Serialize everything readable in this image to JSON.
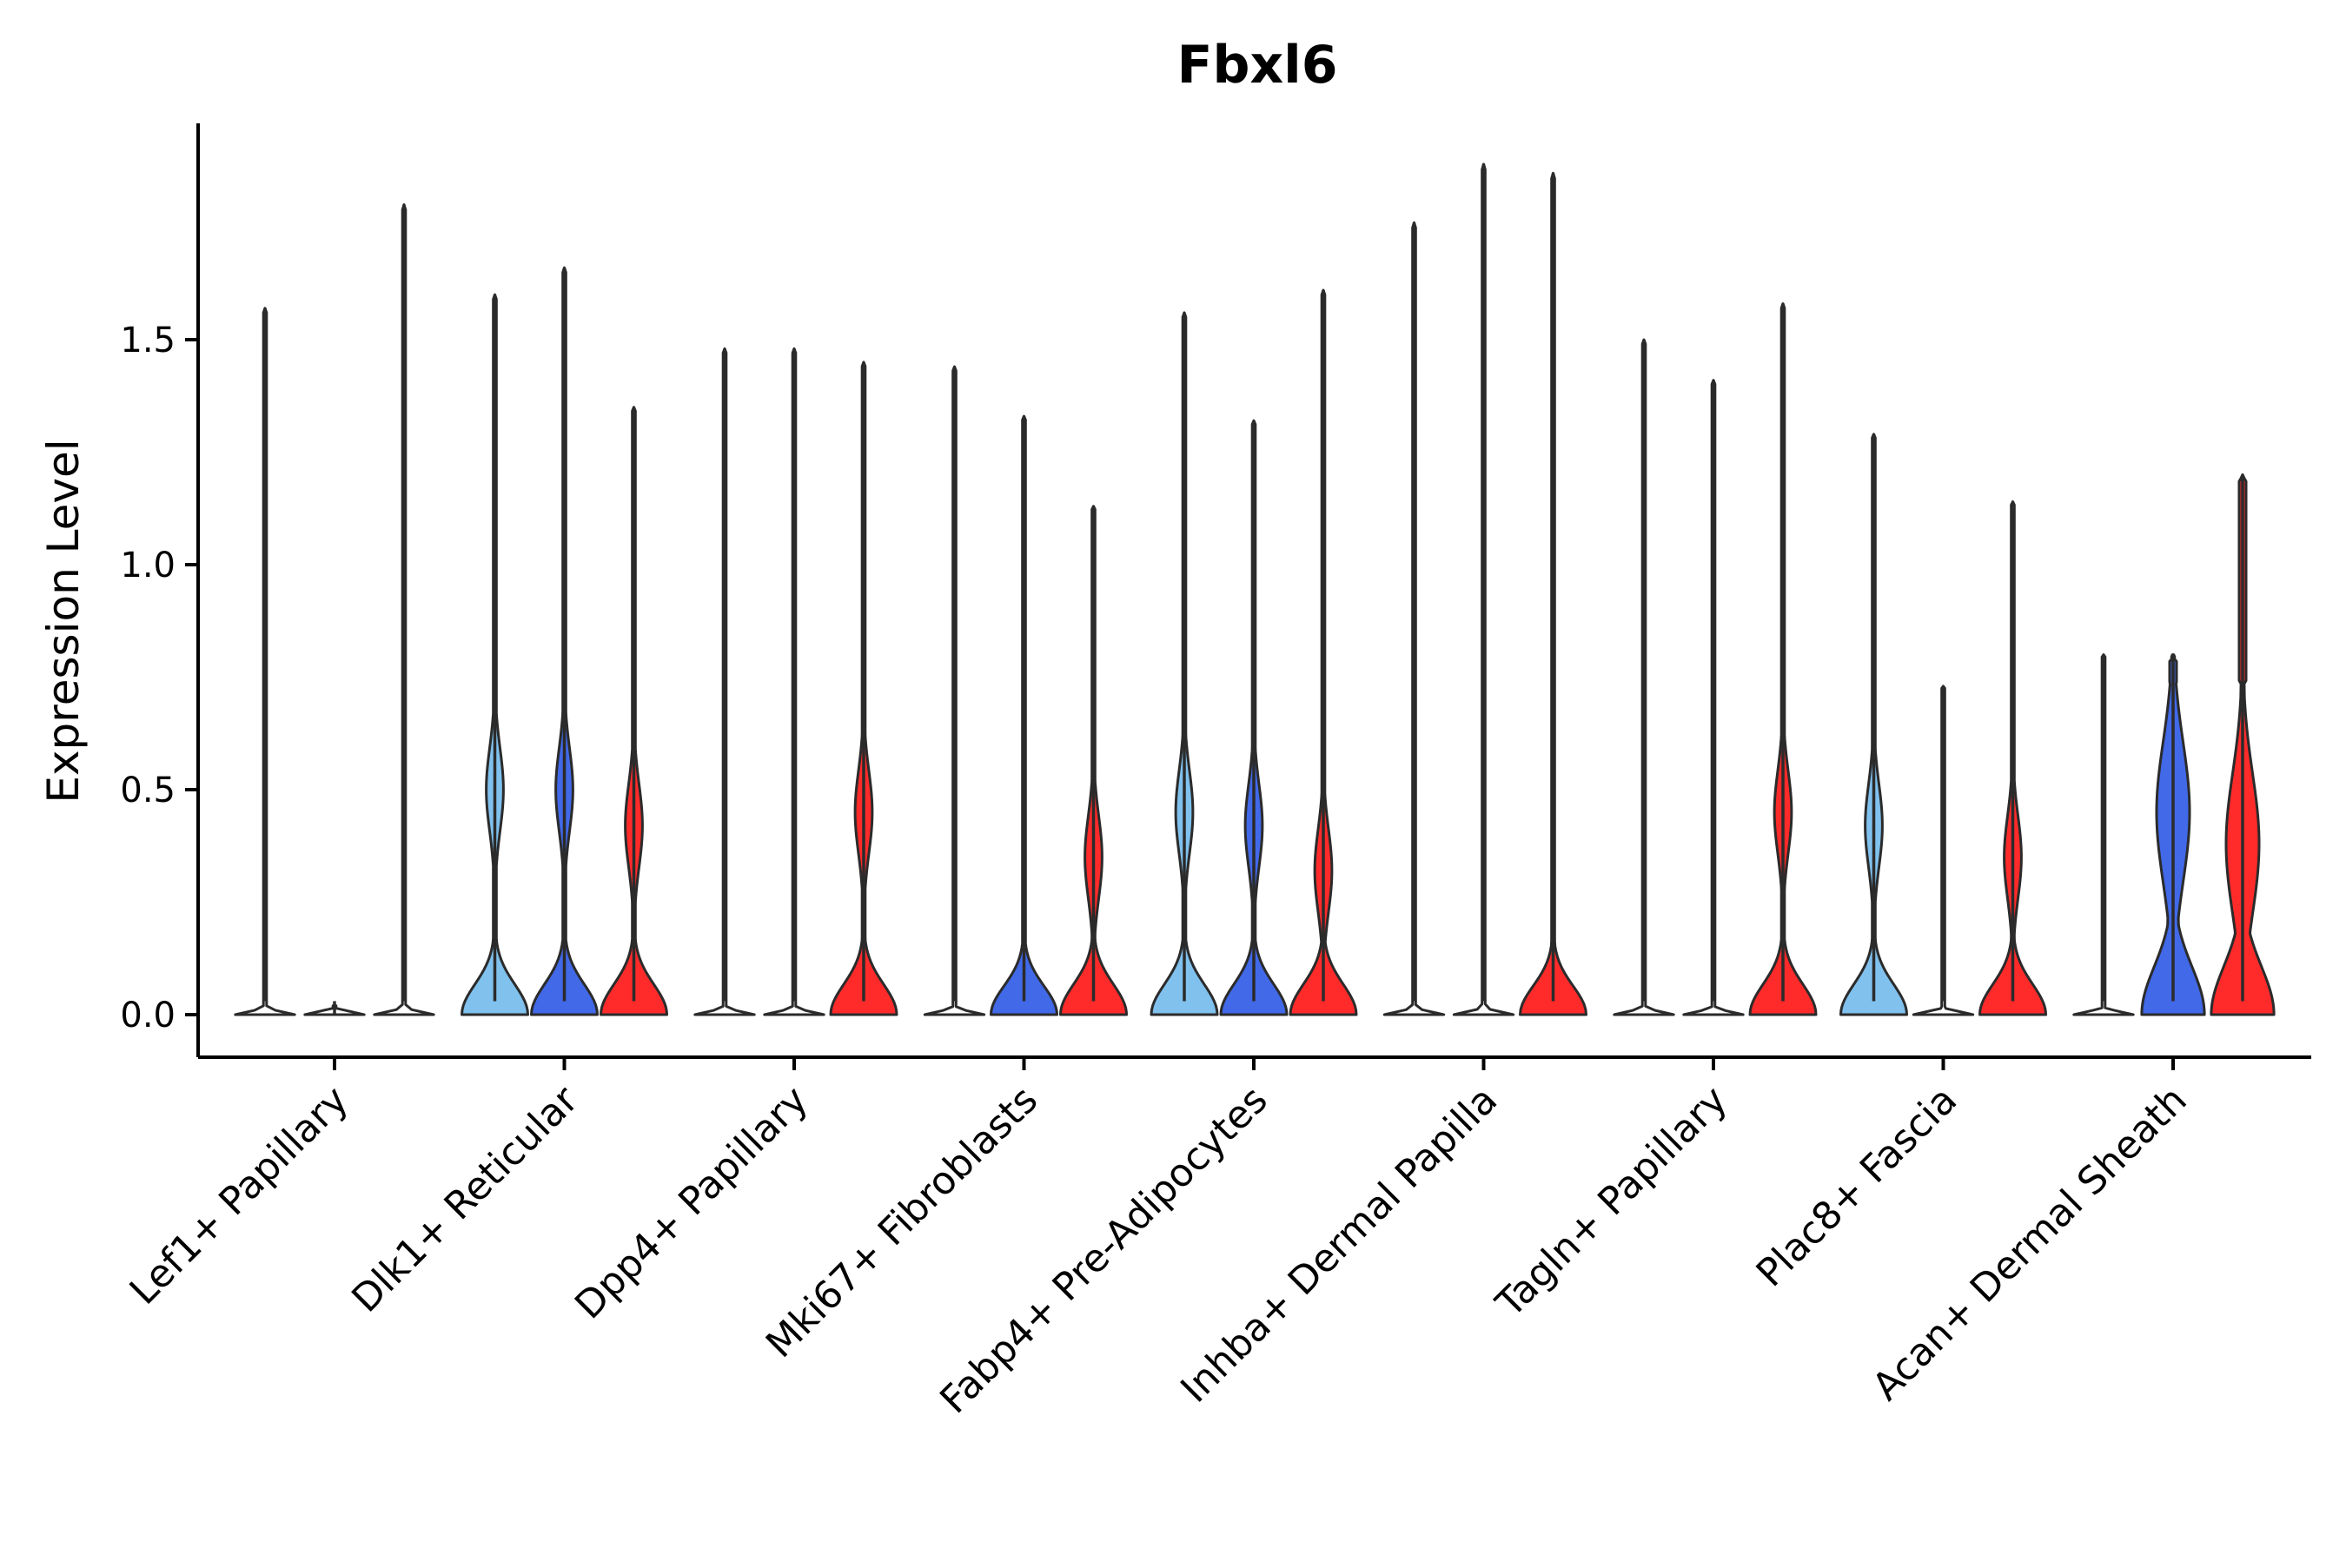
{
  "chart_data": {
    "type": "violin",
    "title": "Fbxl6",
    "xlabel": "",
    "ylabel": "Expression Level",
    "ylim": [
      -0.09,
      1.96
    ],
    "yticks": [
      0.0,
      0.5,
      1.0,
      1.5
    ],
    "ytick_labels": [
      "0.0",
      "0.5",
      "1.0",
      "1.5"
    ],
    "grid": false,
    "legend": "none",
    "colors": {
      "light_blue": "#80C1EE",
      "blue": "#4169E8",
      "red": "#FF2B2B",
      "outline": "#2b2b2b"
    },
    "categories": [
      {
        "label": "Lef1+ Papillary",
        "violins": [
          {
            "color": "light_blue",
            "max": 1.57,
            "peak": 0.0,
            "body": "zero"
          },
          {
            "color": "blue",
            "max": 0.0,
            "peak": 0.0,
            "body": "zero"
          },
          {
            "color": "red",
            "max": 1.8,
            "peak": 0.0,
            "body": "zero"
          }
        ]
      },
      {
        "label": "Dlk1+ Reticular",
        "violins": [
          {
            "color": "light_blue",
            "max": 1.6,
            "peak": 0.5,
            "body": "bimodal"
          },
          {
            "color": "blue",
            "max": 1.66,
            "peak": 0.5,
            "body": "bimodal"
          },
          {
            "color": "red",
            "max": 1.35,
            "peak": 0.42,
            "body": "bimodal"
          }
        ]
      },
      {
        "label": "Dpp4+ Papillary",
        "violins": [
          {
            "color": "light_blue",
            "max": 1.48,
            "peak": 0.0,
            "body": "zero"
          },
          {
            "color": "blue",
            "max": 1.48,
            "peak": 0.0,
            "body": "zero"
          },
          {
            "color": "red",
            "max": 1.45,
            "peak": 0.45,
            "body": "bimodal"
          }
        ]
      },
      {
        "label": "Mki67+ Fibroblasts",
        "violins": [
          {
            "color": "light_blue",
            "max": 1.44,
            "peak": 0.0,
            "body": "zero"
          },
          {
            "color": "blue",
            "max": 1.33,
            "peak": 0.0,
            "body": "low"
          },
          {
            "color": "red",
            "max": 1.13,
            "peak": 0.35,
            "body": "bimodal"
          }
        ]
      },
      {
        "label": "Fabp4+ Pre-Adipocytes",
        "violins": [
          {
            "color": "light_blue",
            "max": 1.56,
            "peak": 0.45,
            "body": "bimodal"
          },
          {
            "color": "blue",
            "max": 1.32,
            "peak": 0.42,
            "body": "bimodal"
          },
          {
            "color": "red",
            "max": 1.61,
            "peak": 0.32,
            "body": "bimodal"
          }
        ]
      },
      {
        "label": "Inhba+ Dermal Papilla",
        "violins": [
          {
            "color": "light_blue",
            "max": 1.76,
            "peak": 0.0,
            "body": "zero"
          },
          {
            "color": "blue",
            "max": 1.89,
            "peak": 0.0,
            "body": "zero"
          },
          {
            "color": "red",
            "max": 1.87,
            "peak": 0.0,
            "body": "low"
          }
        ]
      },
      {
        "label": "Tagln+ Papillary",
        "violins": [
          {
            "color": "light_blue",
            "max": 1.5,
            "peak": 0.0,
            "body": "zero"
          },
          {
            "color": "blue",
            "max": 1.41,
            "peak": 0.0,
            "body": "zero"
          },
          {
            "color": "red",
            "max": 1.58,
            "peak": 0.45,
            "body": "bimodal"
          }
        ]
      },
      {
        "label": "Plac8+ Fascia",
        "violins": [
          {
            "color": "light_blue",
            "max": 1.29,
            "peak": 0.42,
            "body": "bimodal"
          },
          {
            "color": "blue",
            "max": 0.73,
            "peak": 0.0,
            "body": "zero"
          },
          {
            "color": "red",
            "max": 1.14,
            "peak": 0.35,
            "body": "bimodal"
          }
        ]
      },
      {
        "label": "Acan+ Dermal Sheath",
        "violins": [
          {
            "color": "light_blue",
            "max": 0.8,
            "peak": 0.0,
            "body": "zero"
          },
          {
            "color": "blue",
            "max": 0.8,
            "peak": 0.45,
            "body": "wide"
          },
          {
            "color": "red",
            "max": 1.2,
            "peak": 0.38,
            "body": "wide"
          }
        ]
      }
    ]
  }
}
